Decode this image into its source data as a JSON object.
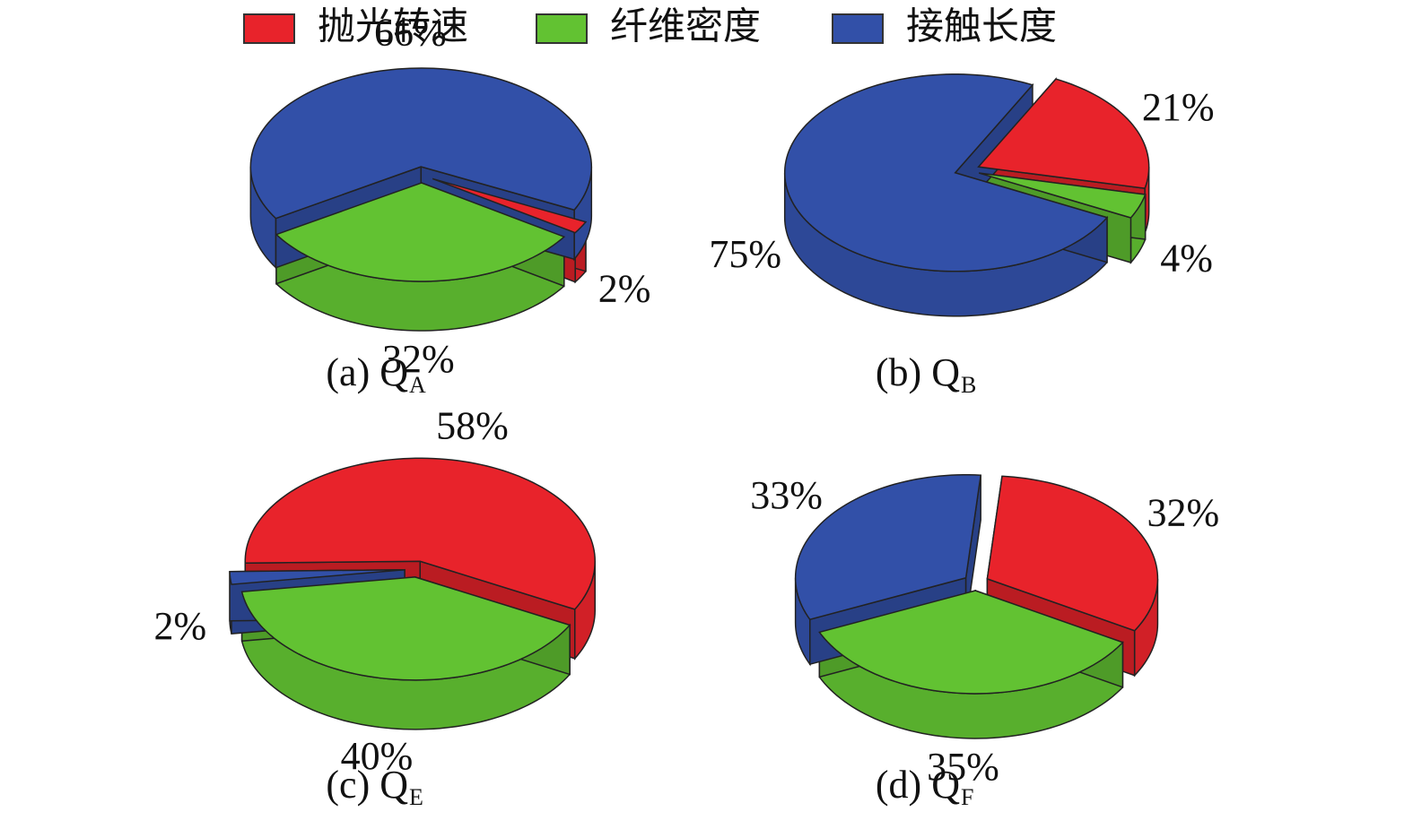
{
  "legend": {
    "categories": [
      "抛光转速",
      "纤维密度",
      "接触长度"
    ],
    "colors": [
      "#e8232b",
      "#62c232",
      "#3250a8"
    ]
  },
  "chart_data": [
    {
      "type": "pie",
      "title": "(a) Q",
      "title_sub": "A",
      "values": [
        2,
        32,
        66
      ],
      "value_labels": [
        "2%",
        "32%",
        "66%"
      ]
    },
    {
      "type": "pie",
      "title": "(b) Q",
      "title_sub": "B",
      "values": [
        21,
        4,
        75
      ],
      "value_labels": [
        "21%",
        "4%",
        "75%"
      ]
    },
    {
      "type": "pie",
      "title": "(c) Q",
      "title_sub": "E",
      "values": [
        58,
        40,
        2
      ],
      "value_labels": [
        "58%",
        "40%",
        "2%"
      ]
    },
    {
      "type": "pie",
      "title": "(d) Q",
      "title_sub": "F",
      "values": [
        32,
        35,
        33
      ],
      "value_labels": [
        "32%",
        "35%",
        "33%"
      ]
    }
  ]
}
